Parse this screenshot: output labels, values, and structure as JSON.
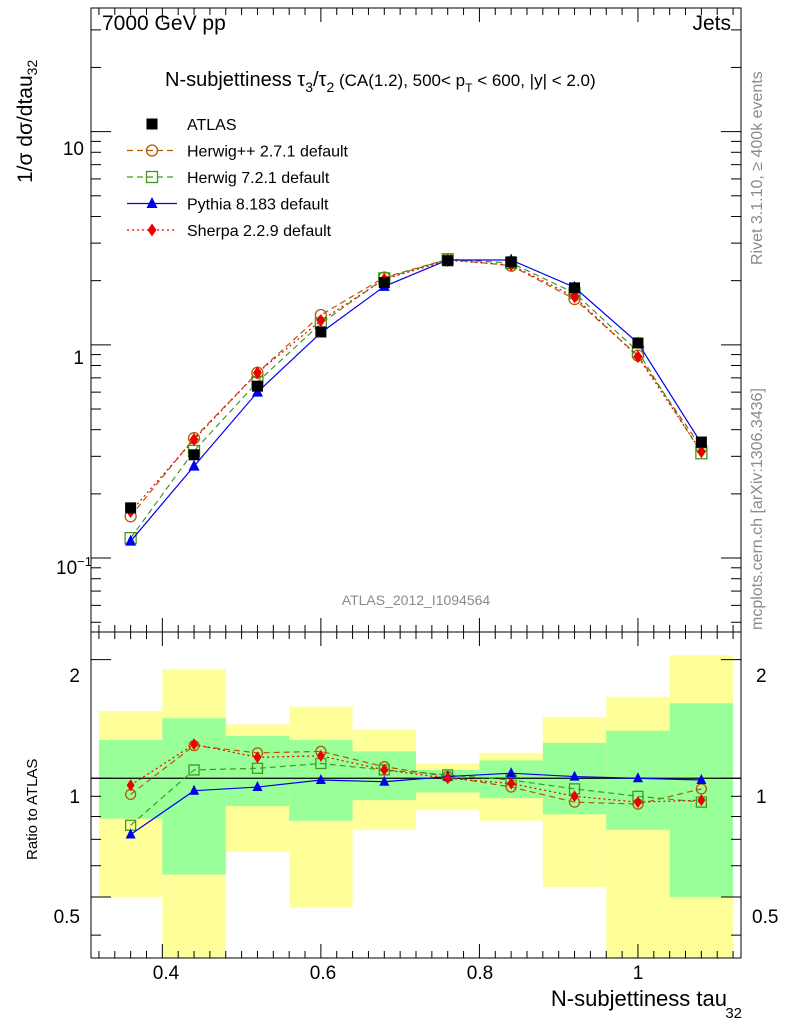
{
  "header": {
    "left_label": "7000 GeV pp",
    "right_label": "Jets",
    "side_label_top": "Rivet 3.1.10, ≥ 400k events",
    "side_label_bottom": "mcplots.cern.ch [arXiv:1306.3436]",
    "watermark": "ATLAS_2012_I1094564"
  },
  "title": {
    "main": "N-subjettiness τ",
    "sub3": "3",
    "slash": "/τ",
    "sub2": "2",
    "cut_a": " (CA(1.2), 500< p",
    "subT": "T",
    "cut_b": " < 600, |y| < 2.0)"
  },
  "axes": {
    "ylabel_main": "1/σ dσ/dtau",
    "ylabel_sub": "32",
    "ratio_ylabel": "Ratio to ATLAS",
    "xlabel_main": "N-subjettiness tau",
    "xlabel_sub": "32",
    "x_ticks": [
      "0.4",
      "0.6",
      "0.8",
      "1"
    ],
    "y_ticks_main": [
      "10",
      "1"
    ],
    "y_tick_exp_base": "10",
    "y_tick_exp_power": "−1",
    "ratio_ticks": [
      "2",
      "1",
      "0.5"
    ]
  },
  "legend": [
    {
      "label": "ATLAS",
      "color": "#000000",
      "marker": "square-filled",
      "line": "none"
    },
    {
      "label": "Herwig++ 2.7.1 default",
      "color": "#b35a00",
      "marker": "circle-open",
      "line": "dashed"
    },
    {
      "label": "Herwig 7.2.1 default",
      "color": "#3c9c1e",
      "marker": "square-open",
      "line": "dashed"
    },
    {
      "label": "Pythia 8.183 default",
      "color": "#0000ee",
      "marker": "triangle-filled",
      "line": "solid"
    },
    {
      "label": "Sherpa 2.2.9 default",
      "color": "#ee0000",
      "marker": "diamond-filled",
      "line": "dotted"
    }
  ],
  "chart_data": {
    "type": "line",
    "title": "N-subjettiness tau3/tau2 (CA(1.2), 500< pT < 600, |y| < 2.0)",
    "xlabel": "N-subjettiness tau32",
    "ylabel": "1/sigma dsigma/dtau32",
    "xlim": [
      0.31,
      1.13
    ],
    "ylim": [
      0.045,
      38
    ],
    "yscale": "log",
    "ratio_ylim": [
      0.35,
      2.35
    ],
    "x": [
      0.36,
      0.44,
      0.52,
      0.6,
      0.68,
      0.76,
      0.84,
      0.92,
      1.0,
      1.08
    ],
    "bin_edges": [
      0.32,
      0.4,
      0.48,
      0.56,
      0.64,
      0.72,
      0.8,
      0.88,
      0.96,
      1.04,
      1.12
    ],
    "series": [
      {
        "name": "ATLAS",
        "values": [
          0.172,
          0.305,
          0.64,
          1.15,
          1.96,
          2.48,
          2.45,
          1.85,
          1.02,
          0.35
        ]
      },
      {
        "name": "Herwig++ 2.7.1 default",
        "values": [
          0.157,
          0.365,
          0.74,
          1.38,
          2.07,
          2.52,
          2.35,
          1.64,
          0.89,
          0.33
        ]
      },
      {
        "name": "Herwig 7.2.1 default",
        "values": [
          0.124,
          0.318,
          0.67,
          1.26,
          2.05,
          2.52,
          2.42,
          1.75,
          0.93,
          0.31
        ]
      },
      {
        "name": "Pythia 8.183 default",
        "values": [
          0.12,
          0.27,
          0.6,
          1.14,
          1.88,
          2.5,
          2.5,
          1.86,
          1.02,
          0.345
        ]
      },
      {
        "name": "Sherpa 2.2.9 default",
        "values": [
          0.165,
          0.36,
          0.74,
          1.3,
          2.03,
          2.49,
          2.37,
          1.68,
          0.88,
          0.315
        ]
      }
    ],
    "ratio_series": [
      {
        "name": "Herwig++ 2.7.1 default",
        "values": [
          0.91,
          1.21,
          1.16,
          1.17,
          1.07,
          1.01,
          0.95,
          0.87,
          0.86,
          0.94
        ]
      },
      {
        "name": "Herwig 7.2.1 default",
        "values": [
          0.76,
          1.05,
          1.06,
          1.09,
          1.05,
          1.02,
          0.99,
          0.94,
          0.9,
          0.87
        ]
      },
      {
        "name": "Pythia 8.183 default",
        "values": [
          0.72,
          0.93,
          0.95,
          0.99,
          0.98,
          1.01,
          1.03,
          1.01,
          1.0,
          0.99
        ]
      },
      {
        "name": "Sherpa 2.2.9 default",
        "values": [
          0.96,
          1.22,
          1.13,
          1.14,
          1.05,
          1.0,
          0.97,
          0.9,
          0.87,
          0.88
        ]
      }
    ],
    "uncertainty_bands": {
      "inner_low": [
        0.79,
        0.57,
        0.85,
        0.78,
        0.88,
        0.92,
        0.89,
        0.81,
        0.74,
        0.5
      ],
      "inner_high": [
        1.25,
        1.42,
        1.28,
        1.25,
        1.17,
        1.05,
        1.11,
        1.23,
        1.32,
        1.55
      ],
      "outer_low": [
        0.5,
        0.33,
        0.65,
        0.47,
        0.74,
        0.83,
        0.78,
        0.53,
        0.33,
        0.33
      ],
      "outer_high": [
        1.48,
        1.89,
        1.37,
        1.52,
        1.33,
        1.09,
        1.16,
        1.43,
        1.61,
        2.05
      ]
    },
    "colors": {
      "inner_band": "#99ff99",
      "outer_band": "#ffff99"
    }
  }
}
